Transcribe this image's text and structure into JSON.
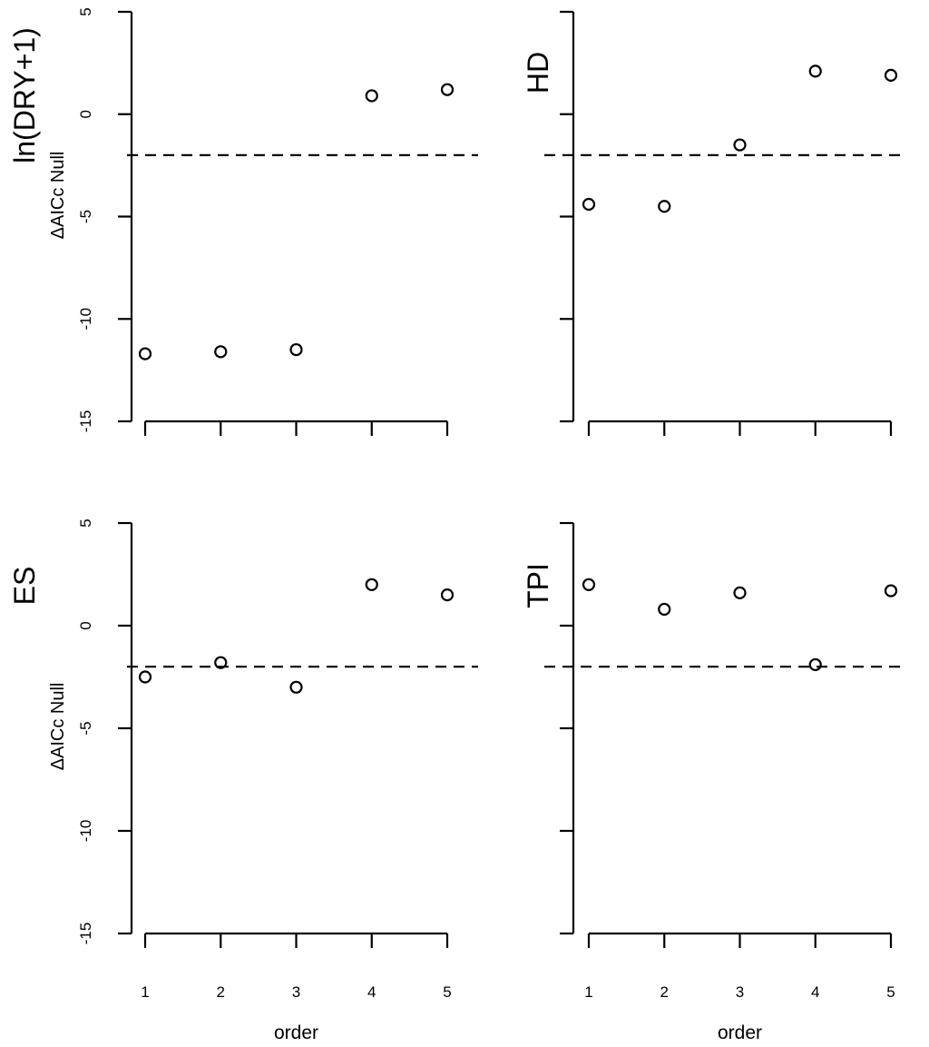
{
  "chart_data": [
    {
      "type": "scatter",
      "panel_label": "ln(DRY+1)",
      "ylabel": "ΔAICc Null",
      "xlabel": "",
      "x": [
        1,
        2,
        3,
        4,
        5
      ],
      "values": [
        -11.7,
        -11.6,
        -11.5,
        0.9,
        1.2
      ],
      "reference_line": -2,
      "ylim": [
        -15,
        5
      ],
      "yticks": [
        "5",
        "0",
        "-5",
        "-10",
        "-15"
      ],
      "xticks": []
    },
    {
      "type": "scatter",
      "panel_label": "HD",
      "ylabel": "",
      "xlabel": "",
      "x": [
        1,
        2,
        3,
        4,
        5
      ],
      "values": [
        -4.4,
        -4.5,
        -1.5,
        2.1,
        1.9
      ],
      "reference_line": -2,
      "ylim": [
        -15,
        5
      ],
      "yticks": [],
      "xticks": []
    },
    {
      "type": "scatter",
      "panel_label": "ES",
      "ylabel": "ΔAICc Null",
      "xlabel": "order",
      "x": [
        1,
        2,
        3,
        4,
        5
      ],
      "values": [
        -2.5,
        -1.8,
        -3.0,
        2.0,
        1.5
      ],
      "reference_line": -2,
      "ylim": [
        -15,
        5
      ],
      "yticks": [
        "5",
        "0",
        "-5",
        "-10",
        "-15"
      ],
      "xticks": [
        "1",
        "2",
        "3",
        "4",
        "5"
      ]
    },
    {
      "type": "scatter",
      "panel_label": "TPI",
      "ylabel": "",
      "xlabel": "order",
      "x": [
        1,
        2,
        3,
        4,
        5
      ],
      "values": [
        2.0,
        0.8,
        1.6,
        -1.9,
        1.7
      ],
      "reference_line": -2,
      "ylim": [
        -15,
        5
      ],
      "yticks": [],
      "xticks": [
        "1",
        "2",
        "3",
        "4",
        "5"
      ]
    }
  ]
}
